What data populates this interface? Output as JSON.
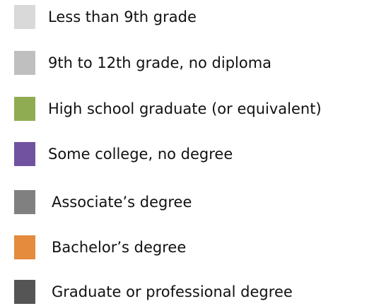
{
  "legend": {
    "items": [
      {
        "label": "Less than 9th grade",
        "color": "#d9d9d9"
      },
      {
        "label": "9th to 12th grade, no diploma",
        "color": "#bfbfbf"
      },
      {
        "label": "High school graduate (or equivalent)",
        "color": "#8fac53"
      },
      {
        "label": "Some college, no degree",
        "color": "#7152a0"
      },
      {
        "label": "Associate’s degree",
        "color": "#808080"
      },
      {
        "label": "Bachelor’s degree",
        "color": "#e58b3d"
      },
      {
        "label": "Graduate or professional degree",
        "color": "#555555"
      }
    ]
  }
}
